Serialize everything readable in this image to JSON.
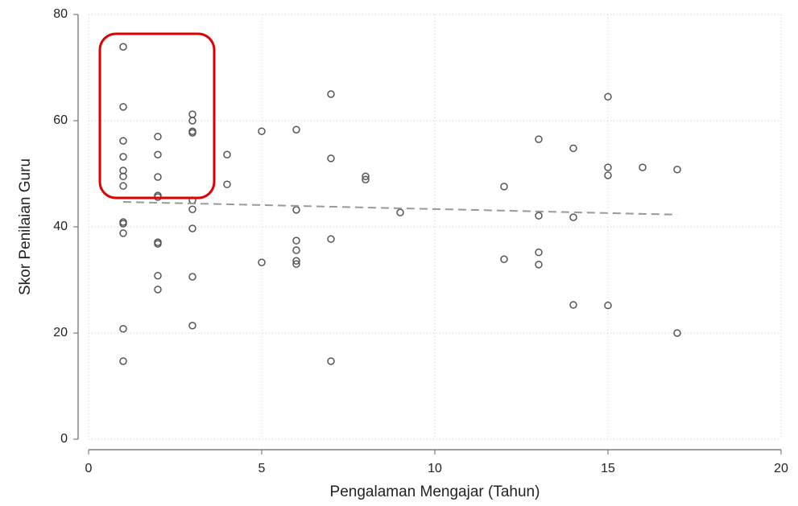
{
  "chart_data": {
    "type": "scatter",
    "x_label": "Pengalaman Mengajar (Tahun)",
    "y_label": "Skor Penilaian Guru",
    "xlim": [
      0,
      20
    ],
    "xticks": [
      0,
      5,
      10,
      15,
      20
    ],
    "ylim": [
      0,
      80
    ],
    "yticks": [
      0,
      20,
      40,
      60,
      80
    ],
    "grid": true,
    "series": [
      {
        "color": "#555555",
        "x": [
          1,
          1,
          1,
          1,
          1,
          1,
          1,
          1,
          1,
          1,
          1,
          1,
          2,
          2,
          2,
          2,
          2,
          2,
          2,
          2,
          2,
          3,
          3,
          3,
          3,
          3,
          3,
          3,
          3,
          3,
          4,
          4,
          5,
          5,
          6,
          6,
          6,
          6,
          6,
          6,
          7,
          7,
          7,
          7,
          8,
          8,
          9,
          12,
          12,
          13,
          13,
          13,
          13,
          14,
          14,
          14,
          15,
          15,
          15,
          15,
          16,
          17,
          17
        ],
        "values": [
          73.9,
          62.6,
          56.2,
          53.2,
          50.6,
          49.5,
          47.7,
          40.9,
          40.6,
          38.8,
          20.8,
          14.7,
          57.0,
          53.6,
          49.4,
          45.9,
          45.6,
          37.1,
          36.8,
          30.8,
          28.2,
          61.2,
          60.0,
          58.0,
          57.7,
          45.0,
          43.3,
          39.7,
          30.6,
          21.4,
          53.6,
          48.0,
          58.0,
          33.3,
          58.3,
          43.2,
          37.4,
          35.6,
          33.6,
          33.0,
          65.0,
          52.9,
          37.7,
          14.7,
          49.5,
          48.9,
          42.7,
          47.6,
          33.9,
          56.5,
          42.1,
          35.2,
          32.9,
          54.8,
          41.8,
          25.3,
          64.5,
          51.2,
          49.7,
          25.2,
          51.2,
          50.8,
          20.0
        ]
      }
    ],
    "fit_line": {
      "color": "#999999",
      "x": [
        1,
        17
      ],
      "values": [
        44.7,
        42.3
      ]
    }
  }
}
